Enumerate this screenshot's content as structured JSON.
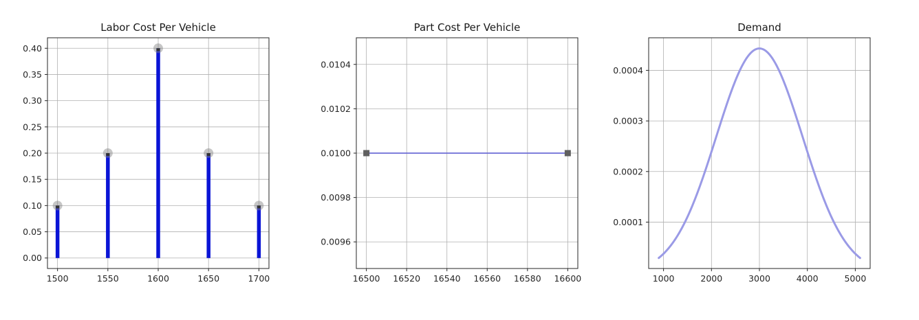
{
  "chart_data": [
    {
      "type": "bar",
      "title": "Labor Cost Per Vehicle",
      "xlabel": "",
      "ylabel": "",
      "x": [
        1500,
        1550,
        1600,
        1650,
        1700
      ],
      "values": [
        0.1,
        0.2,
        0.4,
        0.2,
        0.1
      ],
      "xlim": [
        1490,
        1710
      ],
      "ylim": [
        -0.02,
        0.42
      ],
      "xticks": [
        1500,
        1550,
        1600,
        1650,
        1700
      ],
      "yticks": [
        0.0,
        0.05,
        0.1,
        0.15,
        0.2,
        0.25,
        0.3,
        0.35,
        0.4
      ],
      "ytick_labels": [
        "0.00",
        "0.05",
        "0.10",
        "0.15",
        "0.20",
        "0.25",
        "0.30",
        "0.35",
        "0.40"
      ],
      "grid": true,
      "bar_color": "#0a14d6",
      "marker_color": "#808080"
    },
    {
      "type": "line",
      "title": "Part Cost Per Vehicle",
      "xlabel": "",
      "ylabel": "",
      "x": [
        16500,
        16600
      ],
      "y": [
        0.01,
        0.01
      ],
      "xlim": [
        16495,
        16605
      ],
      "ylim": [
        0.00948,
        0.01052
      ],
      "xticks": [
        16500,
        16520,
        16540,
        16560,
        16580,
        16600
      ],
      "yticks": [
        0.0096,
        0.0098,
        0.01,
        0.0102,
        0.0104
      ],
      "ytick_labels": [
        "0.0096",
        "0.0098",
        "0.0100",
        "0.0102",
        "0.0104"
      ],
      "grid": true,
      "line_color": "#6b6bd6",
      "marker_color": "#606060"
    },
    {
      "type": "line",
      "title": "Demand",
      "xlabel": "",
      "ylabel": "",
      "distribution": {
        "mean": 3000,
        "std": 900,
        "x_start": 900,
        "x_end": 5100
      },
      "xlim": [
        690,
        5310
      ],
      "ylim": [
        8.3e-06,
        0.0004644
      ],
      "xticks": [
        1000,
        2000,
        3000,
        4000,
        5000
      ],
      "yticks": [
        0.0001,
        0.0002,
        0.0003,
        0.0004
      ],
      "ytick_labels": [
        "0.0001",
        "0.0002",
        "0.0003",
        "0.0004"
      ],
      "grid": true,
      "line_color": "#9a9ae6"
    }
  ]
}
